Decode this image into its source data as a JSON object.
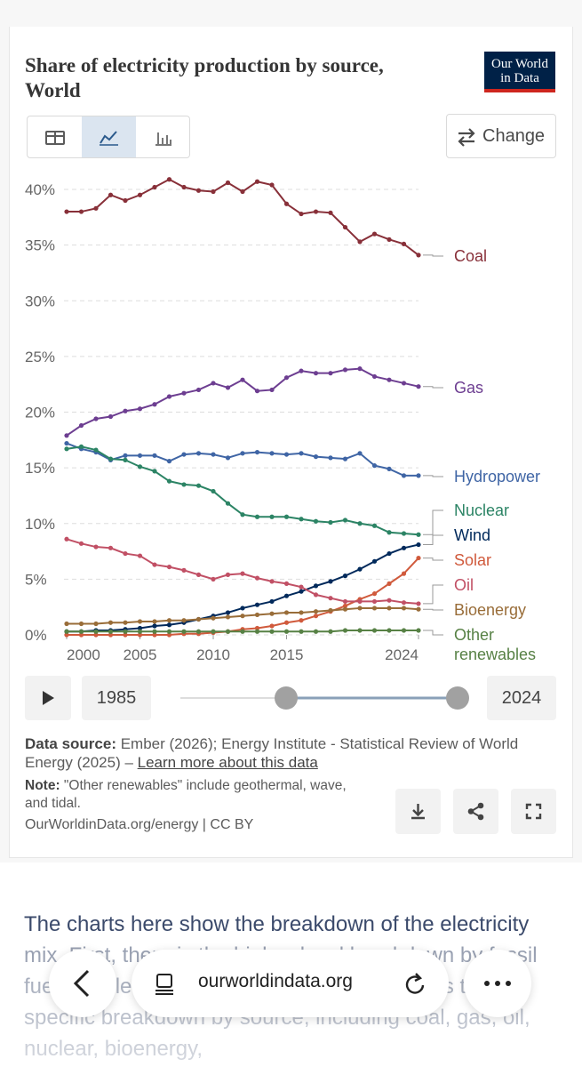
{
  "header": {
    "title": "Share of electricity production by source, World",
    "logo": "Our World in Data"
  },
  "controls": {
    "change": "Change"
  },
  "chart_data": {
    "type": "line",
    "x": [
      2000,
      2001,
      2002,
      2003,
      2004,
      2005,
      2006,
      2007,
      2008,
      2009,
      2010,
      2011,
      2012,
      2013,
      2014,
      2015,
      2016,
      2017,
      2018,
      2019,
      2020,
      2021,
      2022,
      2023,
      2024
    ],
    "series": [
      {
        "name": "Coal",
        "color": "#883039",
        "values": [
          38.0,
          38.0,
          38.3,
          39.5,
          39.0,
          39.5,
          40.2,
          40.9,
          40.2,
          39.9,
          39.8,
          40.6,
          39.8,
          40.7,
          40.4,
          38.7,
          37.8,
          38.0,
          37.9,
          36.6,
          35.3,
          36.0,
          35.5,
          35.1,
          34.1
        ]
      },
      {
        "name": "Gas",
        "color": "#6d3e91",
        "values": [
          17.9,
          18.8,
          19.4,
          19.6,
          20.1,
          20.3,
          20.7,
          21.4,
          21.7,
          22.0,
          22.6,
          22.2,
          22.9,
          21.9,
          22.0,
          23.1,
          23.7,
          23.5,
          23.5,
          23.8,
          23.9,
          23.2,
          22.9,
          22.6,
          22.3
        ]
      },
      {
        "name": "Hydropower",
        "color": "#3f65a5",
        "values": [
          17.2,
          16.7,
          16.4,
          15.7,
          16.1,
          16.1,
          16.1,
          15.6,
          16.2,
          16.3,
          16.2,
          15.9,
          16.3,
          16.4,
          16.3,
          16.2,
          16.3,
          16.0,
          15.9,
          15.8,
          16.3,
          15.2,
          14.9,
          14.3,
          14.3
        ]
      },
      {
        "name": "Nuclear",
        "color": "#2c8465",
        "values": [
          16.7,
          16.9,
          16.6,
          15.8,
          15.7,
          15.1,
          14.7,
          13.8,
          13.5,
          13.4,
          12.9,
          11.8,
          10.8,
          10.6,
          10.6,
          10.6,
          10.4,
          10.2,
          10.1,
          10.3,
          10.0,
          9.8,
          9.2,
          9.1,
          9.0
        ]
      },
      {
        "name": "Wind",
        "color": "#00295b",
        "values": [
          0.3,
          0.3,
          0.4,
          0.4,
          0.5,
          0.6,
          0.8,
          0.9,
          1.1,
          1.4,
          1.7,
          2.0,
          2.4,
          2.7,
          3.0,
          3.5,
          3.9,
          4.4,
          4.8,
          5.3,
          5.9,
          6.6,
          7.3,
          7.8,
          8.1
        ]
      },
      {
        "name": "Solar",
        "color": "#d05a3c",
        "values": [
          0.0,
          0.0,
          0.0,
          0.0,
          0.0,
          0.0,
          0.0,
          0.0,
          0.1,
          0.1,
          0.2,
          0.3,
          0.5,
          0.6,
          0.8,
          1.1,
          1.3,
          1.7,
          2.1,
          2.6,
          3.2,
          3.7,
          4.6,
          5.5,
          6.9
        ]
      },
      {
        "name": "Oil",
        "color": "#c15065",
        "values": [
          8.6,
          8.2,
          7.9,
          7.8,
          7.3,
          7.1,
          6.3,
          6.1,
          5.8,
          5.4,
          5.0,
          5.4,
          5.5,
          5.1,
          4.8,
          4.6,
          4.3,
          3.6,
          3.3,
          3.0,
          3.0,
          3.0,
          3.1,
          2.9,
          2.8
        ]
      },
      {
        "name": "Bioenergy",
        "color": "#996d39",
        "values": [
          1.0,
          1.0,
          1.0,
          1.1,
          1.1,
          1.2,
          1.2,
          1.3,
          1.3,
          1.4,
          1.5,
          1.6,
          1.7,
          1.8,
          1.9,
          2.0,
          2.0,
          2.1,
          2.2,
          2.3,
          2.4,
          2.4,
          2.4,
          2.4,
          2.3
        ]
      },
      {
        "name": "Other renewables",
        "color": "#578145",
        "values": [
          0.3,
          0.3,
          0.3,
          0.3,
          0.3,
          0.3,
          0.3,
          0.3,
          0.3,
          0.3,
          0.3,
          0.3,
          0.3,
          0.3,
          0.3,
          0.3,
          0.3,
          0.3,
          0.3,
          0.4,
          0.4,
          0.4,
          0.4,
          0.4,
          0.4
        ]
      }
    ],
    "xlim": [
      2000,
      2024
    ],
    "xticks": [
      2000,
      2005,
      2010,
      2015,
      2024
    ],
    "ylim": [
      0,
      40
    ],
    "yticks": [
      {
        "value": 0,
        "label": "0%"
      },
      {
        "value": 5,
        "label": "5%"
      },
      {
        "value": 10,
        "label": "10%"
      },
      {
        "value": 15,
        "label": "15%"
      },
      {
        "value": 20,
        "label": "20%"
      },
      {
        "value": 25,
        "label": "25%"
      },
      {
        "value": 30,
        "label": "30%"
      },
      {
        "value": 35,
        "label": "35%"
      },
      {
        "value": 40,
        "label": "40%"
      }
    ],
    "grid": true
  },
  "timeline": {
    "start": "1985",
    "end": "2024"
  },
  "footer": {
    "source_label": "Data source:",
    "source": "Ember (2026); Energy Institute - Statistical Review of World Energy (2025) –",
    "source_link": "Learn more about this data",
    "note_label": "Note:",
    "note": "\"Other renewables\" include geothermal, wave, and tidal.",
    "credit": "OurWorldinData.org/energy | CC BY"
  },
  "article": {
    "text": "The charts here show the breakdown of the electricity mix. First, there is the higher-level breakdown by fossil fuels, nuclear, and renewables. Then, there is the specific breakdown by source, including coal, gas, oil, nuclear, bioenergy,"
  },
  "browser": {
    "url": "ourworldindata.org"
  }
}
